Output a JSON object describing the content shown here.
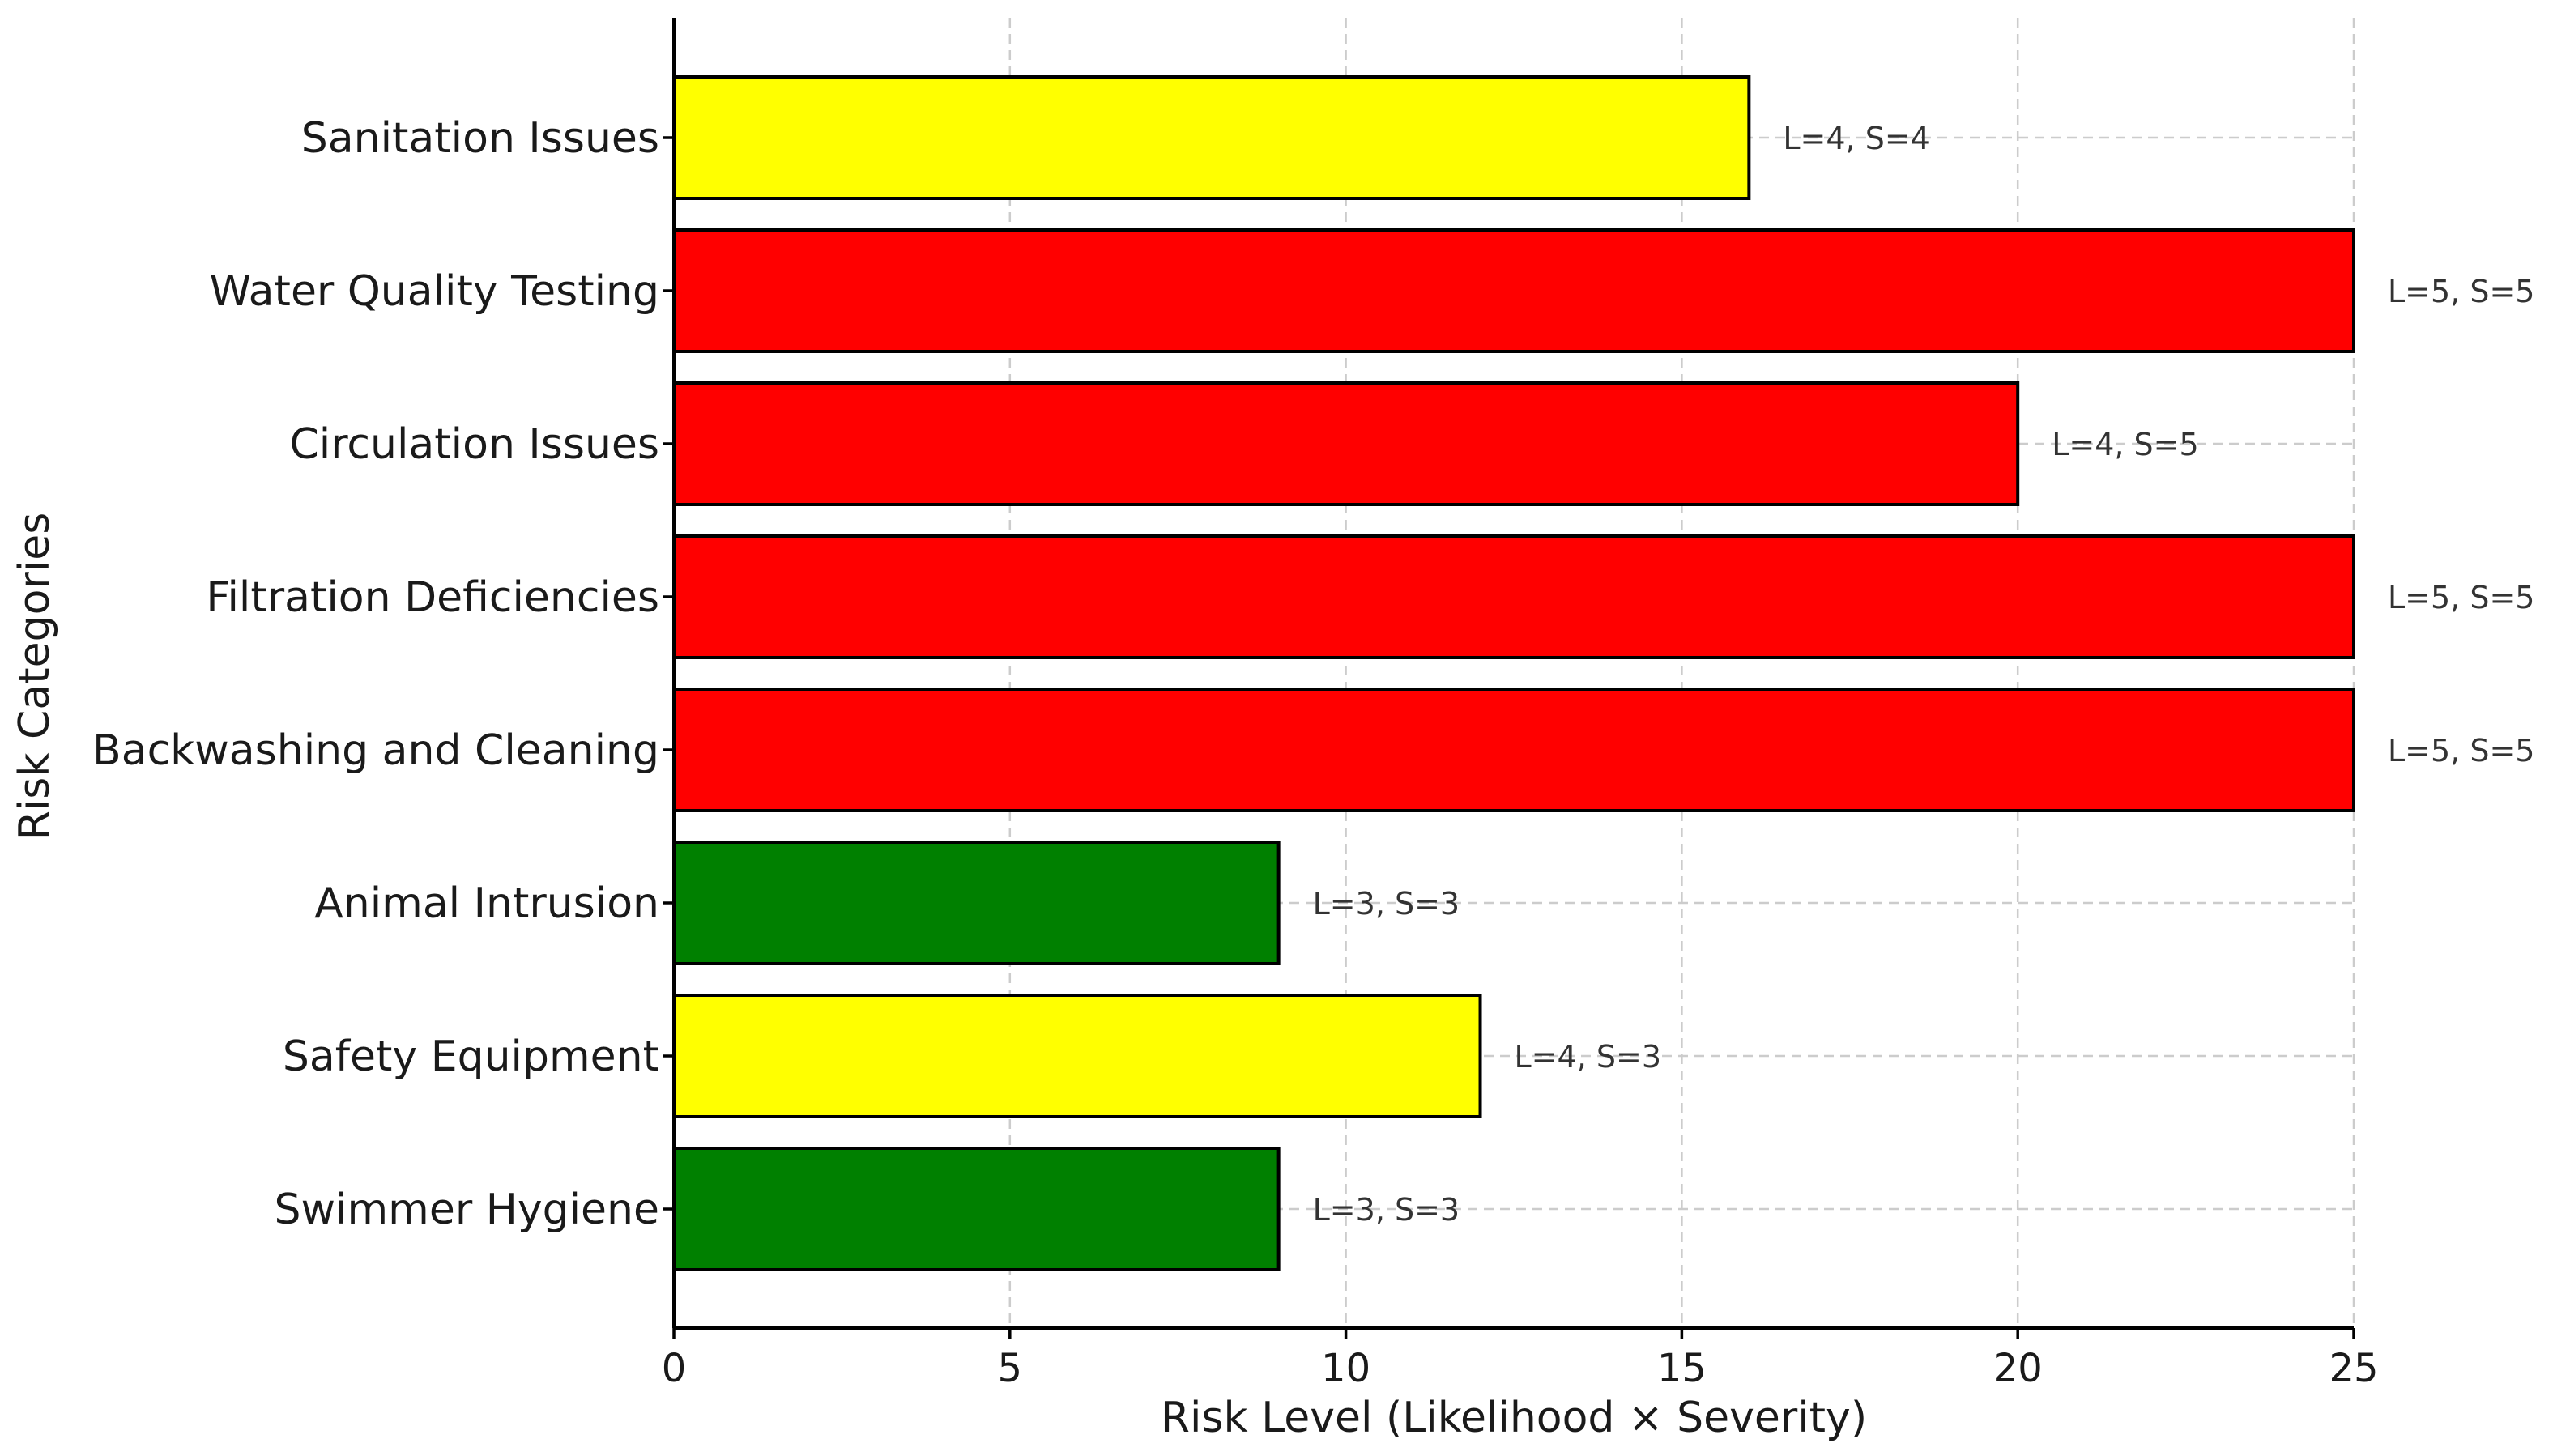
{
  "chart_data": {
    "type": "bar",
    "orientation": "horizontal",
    "xlabel": "Risk Level (Likelihood × Severity)",
    "ylabel": "Risk Categories",
    "xlim": [
      0,
      25
    ],
    "xticks": [
      "0",
      "5",
      "10",
      "15",
      "20",
      "25"
    ],
    "grid": true,
    "categories": [
      "Sanitation Issues",
      "Water Quality Testing",
      "Circulation Issues",
      "Filtration Deficiencies",
      "Backwashing and Cleaning",
      "Animal Intrusion",
      "Safety Equipment",
      "Swimmer Hygiene"
    ],
    "values": [
      16,
      25,
      20,
      25,
      25,
      9,
      12,
      9
    ],
    "labels": [
      "L=4, S=4",
      "L=5, S=5",
      "L=4, S=5",
      "L=5, S=5",
      "L=5, S=5",
      "L=3, S=3",
      "L=4, S=3",
      "L=3, S=3"
    ],
    "colors": [
      "#ffff00",
      "#ff0000",
      "#ff0000",
      "#ff0000",
      "#ff0000",
      "#008000",
      "#ffff00",
      "#008000"
    ]
  }
}
